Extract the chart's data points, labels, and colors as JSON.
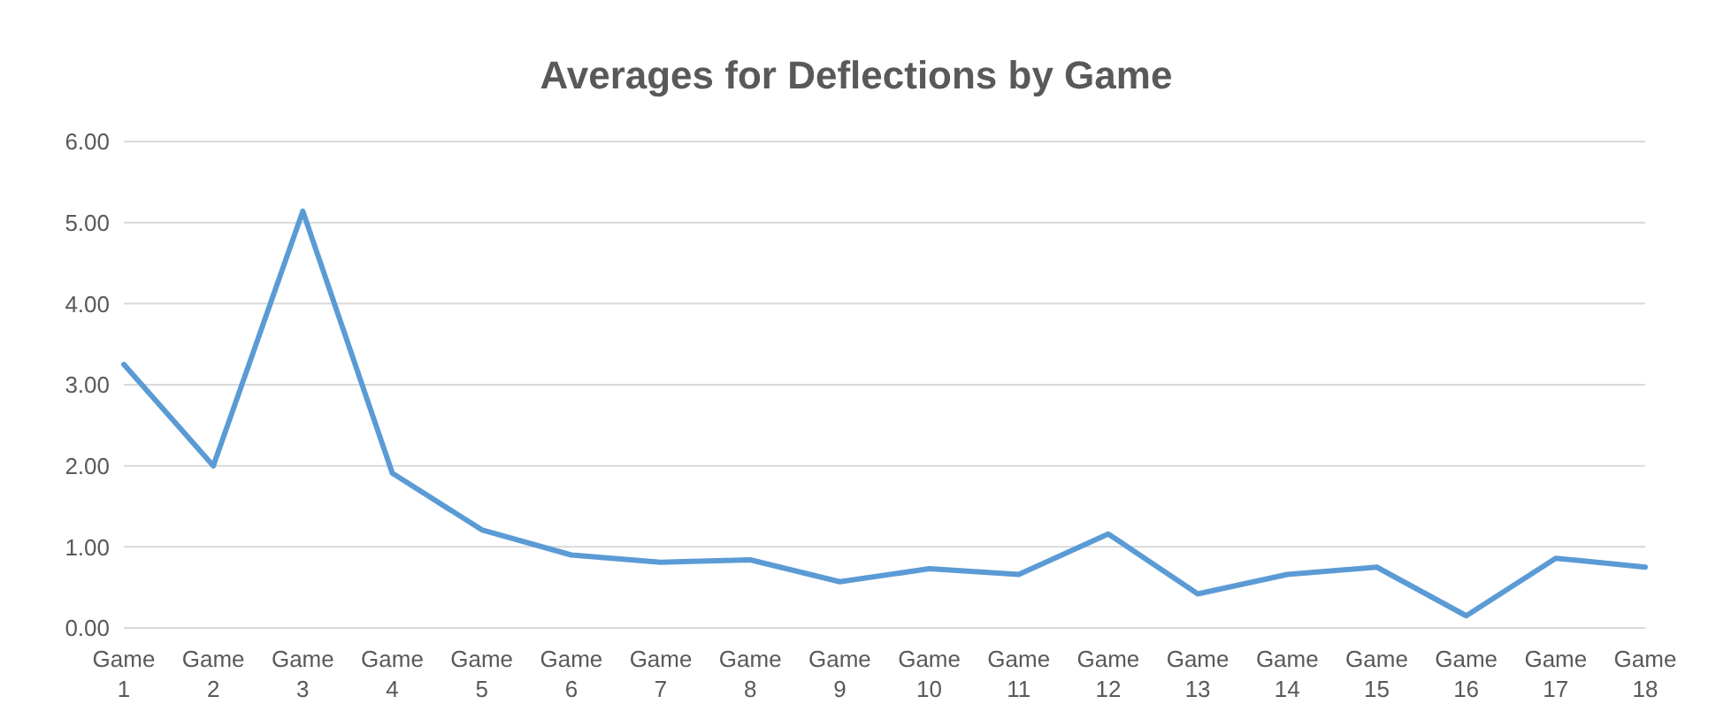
{
  "chart_data": {
    "type": "line",
    "title": "Averages for Deflections by Game",
    "categories": [
      "Game 1",
      "Game 2",
      "Game 3",
      "Game 4",
      "Game 5",
      "Game 6",
      "Game 7",
      "Game 8",
      "Game 9",
      "Game 10",
      "Game 11",
      "Game 12",
      "Game 13",
      "Game 14",
      "Game 15",
      "Game 16",
      "Game 17",
      "Game 18"
    ],
    "series": [
      {
        "color": "#5b9bd5",
        "values": [
          3.25,
          2.0,
          5.14,
          1.91,
          1.21,
          0.9,
          0.81,
          0.84,
          0.57,
          0.73,
          0.66,
          1.16,
          0.42,
          0.66,
          0.75,
          0.15,
          0.86,
          0.75
        ]
      }
    ],
    "ylim": [
      0,
      6
    ],
    "yticks": [
      {
        "value": 0,
        "label": "0.00"
      },
      {
        "value": 1,
        "label": "1.00"
      },
      {
        "value": 2,
        "label": "2.00"
      },
      {
        "value": 3,
        "label": "3.00"
      },
      {
        "value": 4,
        "label": "4.00"
      },
      {
        "value": 5,
        "label": "5.00"
      },
      {
        "value": 6,
        "label": "6.00"
      }
    ],
    "grid": "y",
    "marker": "none",
    "line_style": "solid",
    "legend": false
  }
}
